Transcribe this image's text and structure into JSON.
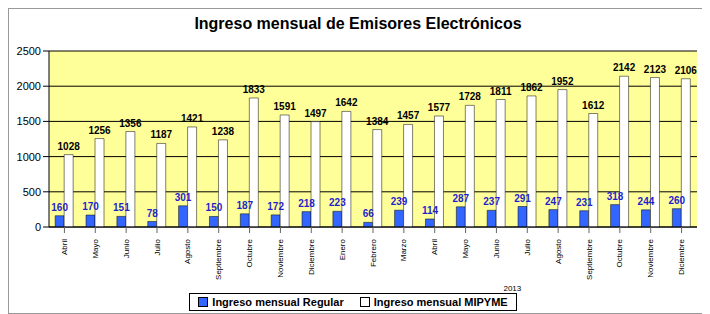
{
  "chart_data": {
    "type": "bar",
    "title": "Ingreso mensual de Emisores Electrónicos",
    "categories": [
      "Abril",
      "Mayo",
      "Junio",
      "Julio",
      "Agosto",
      "Septiembre",
      "Octubre",
      "Noviembre",
      "Diciembre",
      "Enero",
      "Febrero",
      "Marzo",
      "Abril",
      "Mayo",
      "Junio",
      "Julio",
      "Agosto",
      "Septiembre",
      "Octubre",
      "Noviembre",
      "Diciembre"
    ],
    "series": [
      {
        "name": "Ingreso mensual Regular",
        "color": "#3366ff",
        "values": [
          160,
          170,
          151,
          78,
          301,
          150,
          187,
          172,
          218,
          223,
          66,
          239,
          114,
          287,
          237,
          291,
          247,
          231,
          318,
          244,
          260
        ]
      },
      {
        "name": "Ingreso mensual MIPYME",
        "color": "#ffffff",
        "values": [
          1028,
          1256,
          1356,
          1187,
          1421,
          1238,
          1833,
          1591,
          1497,
          1642,
          1384,
          1457,
          1577,
          1728,
          1811,
          1862,
          1952,
          1612,
          2142,
          2123,
          2106
        ]
      }
    ],
    "annotations": [
      {
        "text": "2013",
        "start": "Enero"
      }
    ],
    "ylim": [
      0,
      2500
    ],
    "yticks": [
      0,
      500,
      1000,
      1500,
      2000,
      2500
    ],
    "grid": true,
    "legend": "bottom",
    "data_labels": true
  }
}
